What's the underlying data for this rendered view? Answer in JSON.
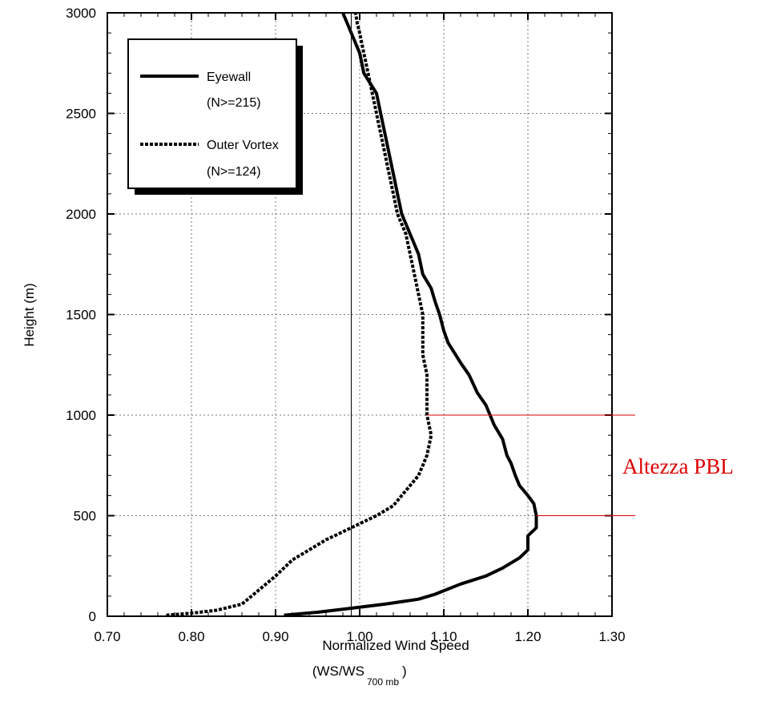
{
  "chart_data": {
    "type": "line",
    "xlabel": "Normalized Wind Speed",
    "xlabel_sub": {
      "main": "(WS/WS",
      "subscript": "700 mb",
      "close": ")"
    },
    "ylabel": "Height (m)",
    "xlim": [
      0.7,
      1.3
    ],
    "ylim": [
      0,
      3000
    ],
    "xticks": [
      "0.70",
      "0.80",
      "0.90",
      "1.00",
      "1.10",
      "1.20",
      "1.30"
    ],
    "yticks": [
      "0",
      "500",
      "1000",
      "1500",
      "2000",
      "2500",
      "3000"
    ],
    "grid": true,
    "legend_position": "top-left",
    "reference_line_x": 0.99,
    "series": [
      {
        "name": "Eyewall",
        "legend_note": "(N>=215)",
        "style": "solid",
        "points": [
          [
            0.91,
            5
          ],
          [
            0.95,
            20
          ],
          [
            0.99,
            40
          ],
          [
            1.03,
            60
          ],
          [
            1.07,
            85
          ],
          [
            1.09,
            110
          ],
          [
            1.12,
            160
          ],
          [
            1.15,
            200
          ],
          [
            1.17,
            240
          ],
          [
            1.19,
            290
          ],
          [
            1.2,
            330
          ],
          [
            1.2,
            400
          ],
          [
            1.21,
            440
          ],
          [
            1.21,
            500
          ],
          [
            1.207,
            560
          ],
          [
            1.2,
            600
          ],
          [
            1.19,
            650
          ],
          [
            1.185,
            700
          ],
          [
            1.18,
            760
          ],
          [
            1.175,
            800
          ],
          [
            1.17,
            880
          ],
          [
            1.16,
            950
          ],
          [
            1.155,
            1000
          ],
          [
            1.15,
            1050
          ],
          [
            1.14,
            1110
          ],
          [
            1.13,
            1200
          ],
          [
            1.12,
            1260
          ],
          [
            1.105,
            1360
          ],
          [
            1.1,
            1420
          ],
          [
            1.095,
            1500
          ],
          [
            1.09,
            1560
          ],
          [
            1.085,
            1630
          ],
          [
            1.075,
            1700
          ],
          [
            1.07,
            1800
          ],
          [
            1.06,
            1900
          ],
          [
            1.05,
            2000
          ],
          [
            1.045,
            2100
          ],
          [
            1.04,
            2200
          ],
          [
            1.035,
            2300
          ],
          [
            1.03,
            2400
          ],
          [
            1.025,
            2500
          ],
          [
            1.02,
            2600
          ],
          [
            1.005,
            2700
          ],
          [
            1.0,
            2800
          ],
          [
            0.99,
            2900
          ],
          [
            0.985,
            2950
          ],
          [
            0.98,
            3000
          ]
        ]
      },
      {
        "name": "Outer Vortex",
        "legend_note": "(N>=124)",
        "style": "dashed",
        "points": [
          [
            0.77,
            5
          ],
          [
            0.8,
            15
          ],
          [
            0.83,
            30
          ],
          [
            0.86,
            60
          ],
          [
            0.88,
            130
          ],
          [
            0.9,
            200
          ],
          [
            0.92,
            280
          ],
          [
            0.94,
            330
          ],
          [
            0.96,
            380
          ],
          [
            0.98,
            420
          ],
          [
            1.0,
            460
          ],
          [
            1.02,
            500
          ],
          [
            1.04,
            550
          ],
          [
            1.05,
            600
          ],
          [
            1.06,
            650
          ],
          [
            1.07,
            700
          ],
          [
            1.075,
            750
          ],
          [
            1.08,
            800
          ],
          [
            1.085,
            900
          ],
          [
            1.08,
            1000
          ],
          [
            1.08,
            1100
          ],
          [
            1.08,
            1200
          ],
          [
            1.075,
            1300
          ],
          [
            1.075,
            1400
          ],
          [
            1.075,
            1500
          ],
          [
            1.07,
            1600
          ],
          [
            1.065,
            1700
          ],
          [
            1.06,
            1800
          ],
          [
            1.055,
            1900
          ],
          [
            1.045,
            2000
          ],
          [
            1.04,
            2100
          ],
          [
            1.035,
            2200
          ],
          [
            1.03,
            2300
          ],
          [
            1.025,
            2400
          ],
          [
            1.02,
            2500
          ],
          [
            1.015,
            2600
          ],
          [
            1.01,
            2700
          ],
          [
            1.005,
            2800
          ],
          [
            1.0,
            2900
          ],
          [
            0.997,
            2950
          ],
          [
            0.995,
            3000
          ]
        ]
      }
    ],
    "annotation": {
      "text": "Altezza PBL",
      "color": "#dd0000",
      "lines": [
        {
          "height": 1000,
          "x_from": 1.08
        },
        {
          "height": 500,
          "x_from": 1.21
        }
      ]
    }
  }
}
